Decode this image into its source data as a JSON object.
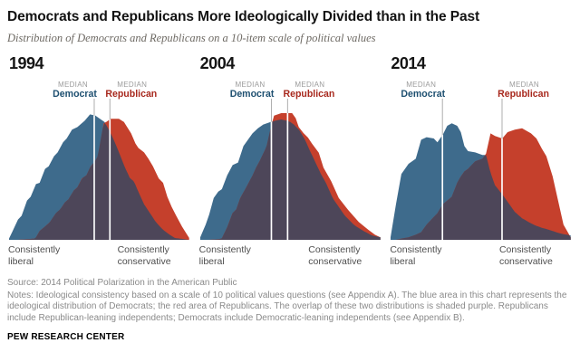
{
  "title": "Democrats and Republicans More Ideologically Divided than in the Past",
  "subtitle": "Distribution of Democrats and Republicans on a 10-item scale of political values",
  "labels": {
    "median": "MEDIAN",
    "democrat": "Democrat",
    "republican": "Republican",
    "left_axis": "Consistently liberal",
    "right_axis": "Consistently conservative"
  },
  "colors": {
    "democrat_fill": "#3e6b8c",
    "republican_fill": "#c5402c",
    "overlap_fill": "#4d4659",
    "democrat_label": "#1d4f70",
    "republican_label": "#a8291e",
    "median_text": "#9b9b9b",
    "tick_line": "#acacac",
    "median_line_in_area": "#ffffff"
  },
  "chart_data": [
    {
      "type": "area",
      "year": "1994",
      "x_axis": {
        "left": "Consistently liberal",
        "right": "Consistently conservative",
        "range": [
          0,
          100
        ],
        "units": "ideological scale position, % of axis"
      },
      "y_units": "distribution height, % of tallest curve",
      "legend": [
        "Democrat (blue)",
        "Republican (red)",
        "Overlap (purple)"
      ],
      "series": [
        {
          "name": "Democrat",
          "x": [
            0,
            2,
            5,
            7,
            10,
            12,
            15,
            17,
            20,
            22,
            25,
            27,
            30,
            32,
            35,
            38,
            42,
            45,
            48,
            50,
            53,
            55,
            57.5,
            60.5,
            63.8,
            67,
            69.4,
            71.8,
            75,
            78.3,
            81.5,
            85.5,
            88.7,
            92,
            100
          ],
          "h": [
            1,
            7,
            16,
            19,
            31,
            34,
            44,
            45,
            56,
            58,
            66,
            69,
            77,
            80,
            87,
            89,
            94,
            99,
            98,
            96,
            93,
            88,
            81,
            71,
            59,
            49,
            46,
            38,
            28,
            21,
            14,
            8,
            4.5,
            1.5,
            0
          ]
        },
        {
          "name": "Republican",
          "x": [
            0,
            5,
            10,
            14.6,
            17,
            20,
            22.7,
            26,
            28.4,
            31,
            33,
            36,
            38,
            40.5,
            43,
            45.3,
            47.7,
            49.3,
            52.5,
            54,
            56.5,
            61,
            63.8,
            67.8,
            70.2,
            71.8,
            75,
            77.4,
            79.9,
            83.1,
            85.5,
            87.9,
            90.3,
            92.8,
            96,
            100
          ],
          "h": [
            0,
            0,
            0.5,
            1,
            7,
            10.5,
            14,
            21,
            24,
            29.5,
            32,
            39,
            41.5,
            48.5,
            51,
            58,
            62,
            66,
            92,
            93,
            95.5,
            95.5,
            93,
            84,
            76,
            72.5,
            69,
            64,
            58,
            48.5,
            45,
            34,
            26,
            19,
            10.5,
            1.5
          ]
        }
      ],
      "medians": {
        "democrat": 47.3,
        "republican": 56.0
      }
    },
    {
      "type": "area",
      "year": "2004",
      "x_axis": {
        "left": "Consistently liberal",
        "right": "Consistently conservative",
        "range": [
          0,
          100
        ],
        "units": "ideological scale position, % of axis"
      },
      "y_units": "distribution height, % of tallest curve",
      "legend": [
        "Democrat (blue)",
        "Republican (red)",
        "Overlap (purple)"
      ],
      "series": [
        {
          "name": "Democrat",
          "x": [
            0,
            3,
            5,
            7.5,
            10,
            12,
            15,
            18,
            21,
            24,
            26,
            29,
            32,
            35,
            40,
            45,
            48,
            50,
            52,
            55,
            58,
            61,
            64,
            67,
            70.1,
            73.5,
            76.9,
            80.3,
            85.5,
            90.6,
            95.7,
            100
          ],
          "h": [
            2,
            12,
            20,
            33,
            38,
            40,
            51,
            59,
            61,
            74,
            78,
            84,
            88,
            91,
            93.5,
            95,
            94,
            93,
            91,
            86.6,
            79.5,
            70,
            61,
            52,
            44,
            33,
            26,
            19,
            11.6,
            7,
            3.3,
            2
          ]
        },
        {
          "name": "Republican",
          "x": [
            0,
            5,
            10,
            11.9,
            15,
            17.9,
            20,
            22.2,
            25,
            29.1,
            31,
            33.3,
            36.8,
            39.6,
            41,
            45,
            51,
            53,
            54.7,
            57.3,
            59.8,
            62,
            65.8,
            68.4,
            72.7,
            76.9,
            82.1,
            88,
            93.2,
            97,
            100
          ],
          "h": [
            0,
            0,
            0.5,
            1,
            10,
            21,
            24,
            33,
            40,
            51,
            57,
            63,
            73.6,
            91,
            98,
            100,
            100,
            96,
            89,
            84.3,
            80.7,
            76,
            68.8,
            57,
            46.2,
            33,
            23.6,
            14.1,
            8.1,
            4,
            2
          ]
        }
      ],
      "medians": {
        "democrat": 39.5,
        "republican": 48.5
      }
    },
    {
      "type": "area",
      "year": "2014",
      "x_axis": {
        "left": "Consistently liberal",
        "right": "Consistently conservative",
        "range": [
          0,
          100
        ],
        "units": "ideological scale position, % of axis"
      },
      "y_units": "distribution height, % of tallest curve",
      "legend": [
        "Democrat (blue)",
        "Republican (red)",
        "Overlap (purple)"
      ],
      "series": [
        {
          "name": "Democrat",
          "x": [
            0,
            3,
            6,
            10,
            14,
            17,
            20,
            24,
            26,
            29,
            31.5,
            34,
            37,
            39,
            41,
            43,
            47,
            51,
            53,
            55.5,
            58,
            62,
            65,
            69,
            73,
            78,
            81,
            84,
            86.5,
            90,
            93,
            96,
            100
          ],
          "h": [
            2,
            28,
            52,
            60,
            64,
            79,
            81,
            80,
            77,
            83,
            90,
            92,
            90,
            85,
            74,
            70,
            69,
            67,
            67,
            53,
            43,
            36,
            30,
            22,
            17,
            13,
            11,
            9.5,
            8.5,
            7,
            5.5,
            4.5,
            3.5
          ]
        },
        {
          "name": "Republican",
          "x": [
            0,
            3,
            6,
            10,
            14,
            17,
            20,
            24,
            26,
            29,
            31.5,
            34,
            37,
            39,
            41,
            43,
            47,
            51,
            53,
            55.5,
            58,
            62,
            65,
            69,
            73,
            78,
            81,
            84,
            86.5,
            90,
            93,
            96,
            100
          ],
          "h": [
            0,
            0,
            1,
            2,
            4,
            6,
            12,
            18,
            21,
            28,
            31,
            34,
            45,
            50,
            54,
            56,
            62,
            64,
            68,
            84,
            82,
            80,
            85,
            87,
            88,
            84,
            80,
            72,
            66,
            50,
            31,
            12,
            2
          ]
        }
      ],
      "medians": {
        "democrat": 28.8,
        "republican": 61.9
      }
    }
  ],
  "footer": {
    "source": "Source: 2014 Political Polarization in the American Public",
    "notes": "Notes: Ideological consistency based on a scale of 10 political values questions (see Appendix A). The blue area in this chart represents the ideological distribution of Democrats; the red area of Republicans. The overlap of these two distributions is shaded purple. Republicans include Republican-leaning independents; Democrats include Democratic-leaning independents (see Appendix B).",
    "brand": "PEW RESEARCH CENTER"
  }
}
